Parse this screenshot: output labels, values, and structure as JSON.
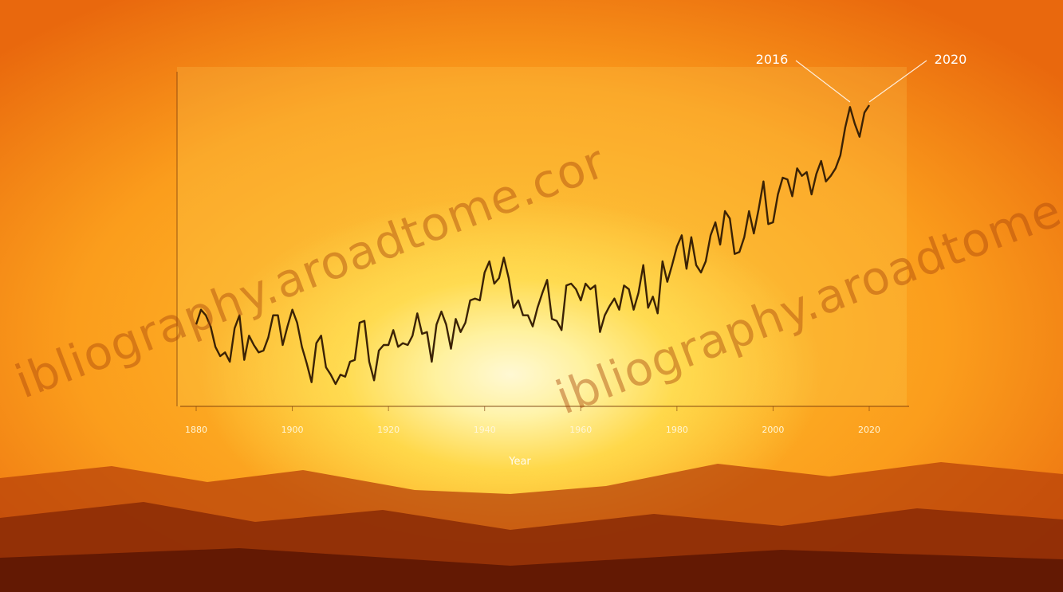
{
  "watermark": {
    "text_1": "ibliography.aroadtome.cor",
    "text_2": "ibliography.aroadtome.co"
  },
  "chart_data": {
    "type": "line",
    "title": "",
    "xlabel": "Year",
    "ylabel": "",
    "x_ticks": [
      "1880",
      "1900",
      "1920",
      "1940",
      "1960",
      "1980",
      "2000",
      "2020"
    ],
    "xlim": [
      1880,
      2020
    ],
    "ylim": [
      -0.6,
      1.2
    ],
    "annotations": [
      {
        "label": "2016",
        "x": 2016,
        "y": 1.02
      },
      {
        "label": "2020",
        "x": 2020,
        "y": 1.02
      }
    ],
    "series": [
      {
        "x": [
          1880,
          1881,
          1882,
          1883,
          1884,
          1885,
          1886,
          1887,
          1888,
          1889,
          1890,
          1891,
          1892,
          1893,
          1894,
          1895,
          1896,
          1897,
          1898,
          1899,
          1900,
          1901,
          1902,
          1903,
          1904,
          1905,
          1906,
          1907,
          1908,
          1909,
          1910,
          1911,
          1912,
          1913,
          1914,
          1915,
          1916,
          1917,
          1918,
          1919,
          1920,
          1921,
          1922,
          1923,
          1924,
          1925,
          1926,
          1927,
          1928,
          1929,
          1930,
          1931,
          1932,
          1933,
          1934,
          1935,
          1936,
          1937,
          1938,
          1939,
          1940,
          1941,
          1942,
          1943,
          1944,
          1945,
          1946,
          1947,
          1948,
          1949,
          1950,
          1951,
          1952,
          1953,
          1954,
          1955,
          1956,
          1957,
          1958,
          1959,
          1960,
          1961,
          1962,
          1963,
          1964,
          1965,
          1966,
          1967,
          1968,
          1969,
          1970,
          1971,
          1972,
          1973,
          1974,
          1975,
          1976,
          1977,
          1978,
          1979,
          1980,
          1981,
          1982,
          1983,
          1984,
          1985,
          1986,
          1987,
          1988,
          1989,
          1990,
          1991,
          1992,
          1993,
          1994,
          1995,
          1996,
          1997,
          1998,
          1999,
          2000,
          2001,
          2002,
          2003,
          2004,
          2005,
          2006,
          2007,
          2008,
          2009,
          2010,
          2011,
          2012,
          2013,
          2014,
          2015,
          2016,
          2017,
          2018,
          2019,
          2020
        ],
        "values": [
          -0.16,
          -0.08,
          -0.11,
          -0.17,
          -0.28,
          -0.33,
          -0.31,
          -0.36,
          -0.18,
          -0.11,
          -0.35,
          -0.22,
          -0.27,
          -0.31,
          -0.3,
          -0.23,
          -0.11,
          -0.11,
          -0.27,
          -0.17,
          -0.08,
          -0.15,
          -0.28,
          -0.37,
          -0.47,
          -0.26,
          -0.22,
          -0.39,
          -0.43,
          -0.48,
          -0.43,
          -0.44,
          -0.36,
          -0.35,
          -0.15,
          -0.14,
          -0.36,
          -0.46,
          -0.3,
          -0.27,
          -0.27,
          -0.19,
          -0.28,
          -0.26,
          -0.27,
          -0.22,
          -0.1,
          -0.21,
          -0.2,
          -0.36,
          -0.16,
          -0.09,
          -0.16,
          -0.29,
          -0.13,
          -0.2,
          -0.15,
          -0.03,
          -0.02,
          -0.03,
          0.12,
          0.18,
          0.06,
          0.09,
          0.2,
          0.09,
          -0.07,
          -0.03,
          -0.11,
          -0.11,
          -0.17,
          -0.07,
          0.01,
          0.08,
          -0.13,
          -0.14,
          -0.19,
          0.05,
          0.06,
          0.03,
          -0.03,
          0.06,
          0.03,
          0.05,
          -0.2,
          -0.11,
          -0.06,
          -0.02,
          -0.08,
          0.05,
          0.03,
          -0.08,
          0.01,
          0.16,
          -0.07,
          -0.01,
          -0.1,
          0.18,
          0.07,
          0.16,
          0.26,
          0.32,
          0.14,
          0.31,
          0.16,
          0.12,
          0.18,
          0.32,
          0.39,
          0.27,
          0.45,
          0.41,
          0.22,
          0.23,
          0.31,
          0.45,
          0.33,
          0.46,
          0.61,
          0.38,
          0.39,
          0.54,
          0.63,
          0.62,
          0.53,
          0.68,
          0.64,
          0.66,
          0.54,
          0.65,
          0.72,
          0.61,
          0.64,
          0.68,
          0.75,
          0.9,
          1.01,
          0.92,
          0.85,
          0.98,
          1.02
        ]
      }
    ]
  }
}
